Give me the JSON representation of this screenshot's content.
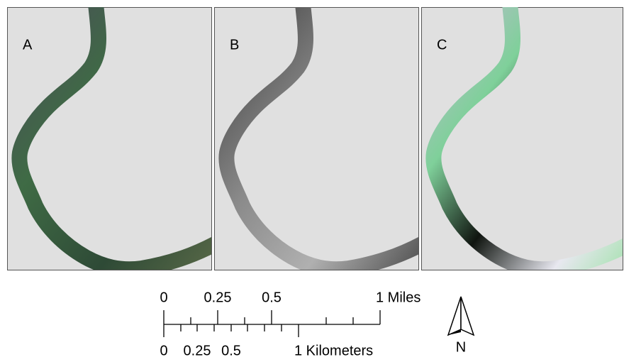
{
  "panels": [
    {
      "label": "A"
    },
    {
      "label": "B"
    },
    {
      "label": "C"
    }
  ],
  "scale_bar": {
    "miles_labels": [
      "0",
      "0.25",
      "0.5",
      "1 Miles"
    ],
    "km_labels": [
      "0",
      "0.25",
      "0.5",
      "1 Kilometers"
    ]
  },
  "north_arrow": {
    "label": "N"
  }
}
